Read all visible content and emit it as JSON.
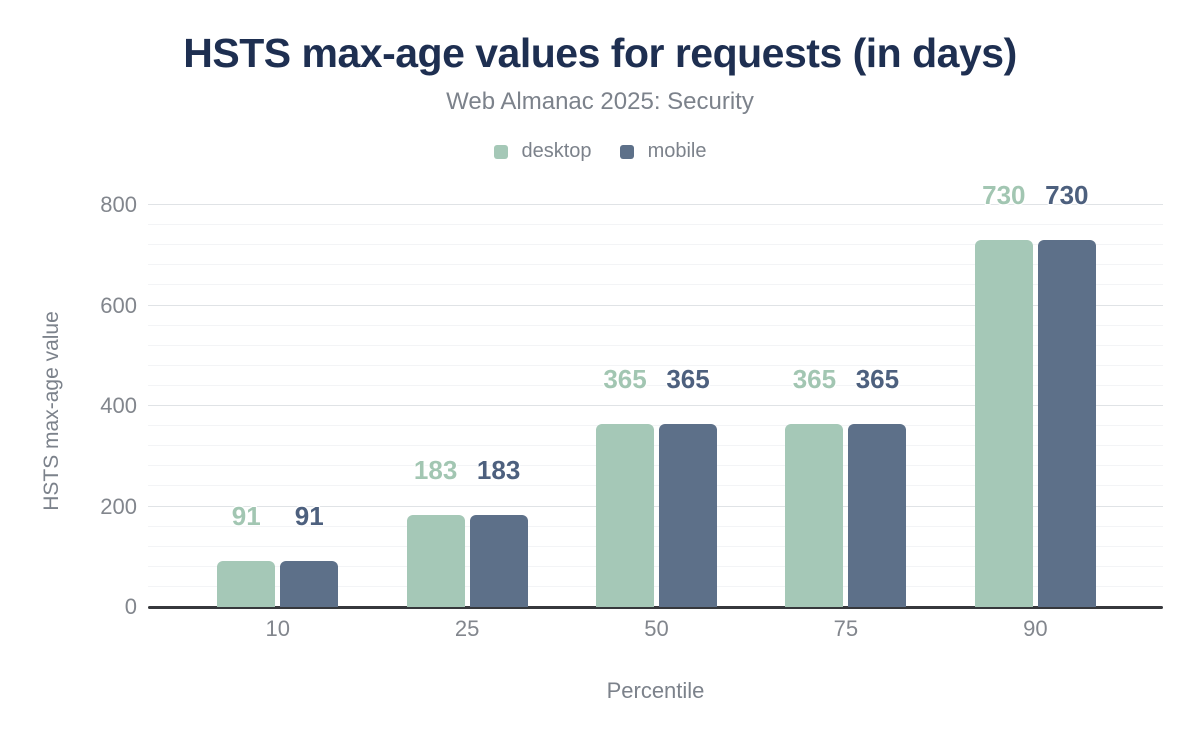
{
  "header": {
    "title": "HSTS max-age values for requests (in days)",
    "subtitle": "Web Almanac 2025: Security"
  },
  "colors": {
    "title": "#1e2f51",
    "muted_text": "#7c828b",
    "tick_text": "#82868d",
    "axis_line": "#36383c",
    "grid_major": "#e0e3e6",
    "grid_minor": "#f3f4f6",
    "desktop": "#a5c8b7",
    "desktop_label": "#a2c6b2",
    "mobile": "#5d7089",
    "mobile_label": "#4d607e"
  },
  "chart_data": {
    "type": "bar",
    "title": "HSTS max-age values for requests (in days)",
    "subtitle": "Web Almanac 2025: Security",
    "categories": [
      "10",
      "25",
      "50",
      "75",
      "90"
    ],
    "series": [
      {
        "name": "desktop",
        "color": "#a5c8b7",
        "label_color": "#a2c6b2",
        "values": [
          91,
          183,
          365,
          365,
          730
        ]
      },
      {
        "name": "mobile",
        "color": "#5d7089",
        "label_color": "#4d607e",
        "values": [
          91,
          183,
          365,
          365,
          730
        ]
      }
    ],
    "xlabel": "Percentile",
    "ylabel": "HSTS max-age value",
    "ylim": [
      0,
      800
    ],
    "yticks": [
      0,
      200,
      400,
      600,
      800
    ],
    "minor_tick_interval": 40,
    "grid": true,
    "legend_position": "top",
    "data_labels": true
  }
}
